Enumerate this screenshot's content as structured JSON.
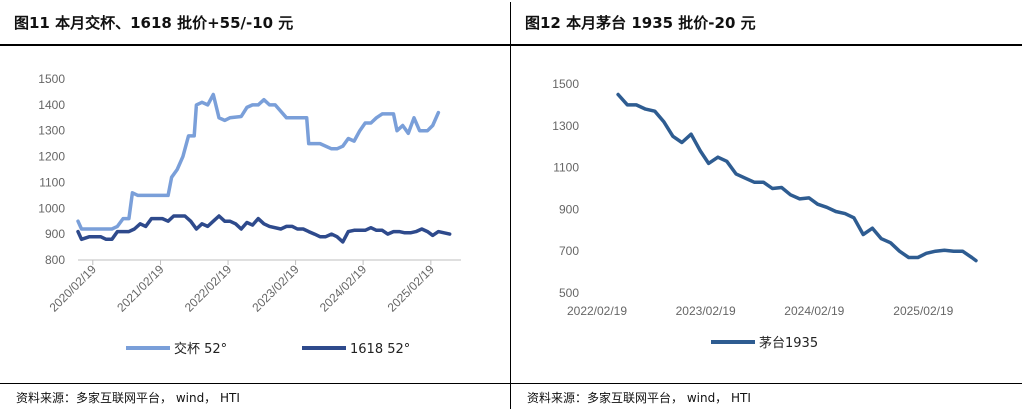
{
  "left": {
    "title": "图11 本月交杯、1618 批价+55/-10 元",
    "source": "资料来源：多家互联网平台， wind， HTI"
  },
  "right": {
    "title": "图12 本月茅台 1935 批价-20 元",
    "source": "资料来源：多家互联网平台， wind， HTI"
  },
  "chart_data": [
    {
      "type": "line",
      "title": "",
      "ylim": [
        800,
        1500
      ],
      "yticks": [
        800,
        900,
        1000,
        1100,
        1200,
        1300,
        1400,
        1500
      ],
      "xlim": [
        "2019-12-01",
        "2025-08-01"
      ],
      "xticks": [
        "2020/02/19",
        "2021/02/19",
        "2022/02/19",
        "2023/02/19",
        "2024/02/19",
        "2025/02/19"
      ],
      "xtick_dates": [
        "2020-02-19",
        "2021-02-19",
        "2022-02-19",
        "2023-02-19",
        "2024-02-19",
        "2025-02-19"
      ],
      "legend_position": "bottom",
      "series": [
        {
          "name": "交杯 52°",
          "color": "#7A9FD9",
          "points": [
            [
              "2019-12-01",
              950
            ],
            [
              "2019-12-20",
              920
            ],
            [
              "2020-02-01",
              920
            ],
            [
              "2020-04-01",
              920
            ],
            [
              "2020-06-01",
              920
            ],
            [
              "2020-07-01",
              930
            ],
            [
              "2020-08-01",
              960
            ],
            [
              "2020-09-01",
              960
            ],
            [
              "2020-09-20",
              1060
            ],
            [
              "2020-10-20",
              1050
            ],
            [
              "2020-12-01",
              1050
            ],
            [
              "2021-02-01",
              1050
            ],
            [
              "2021-04-01",
              1050
            ],
            [
              "2021-04-20",
              1120
            ],
            [
              "2021-05-20",
              1150
            ],
            [
              "2021-06-20",
              1200
            ],
            [
              "2021-07-20",
              1280
            ],
            [
              "2021-08-20",
              1280
            ],
            [
              "2021-09-01",
              1400
            ],
            [
              "2021-10-01",
              1410
            ],
            [
              "2021-11-01",
              1400
            ],
            [
              "2021-12-01",
              1440
            ],
            [
              "2022-01-01",
              1350
            ],
            [
              "2022-02-01",
              1340
            ],
            [
              "2022-03-01",
              1350
            ],
            [
              "2022-05-01",
              1355
            ],
            [
              "2022-06-01",
              1390
            ],
            [
              "2022-07-01",
              1400
            ],
            [
              "2022-08-01",
              1400
            ],
            [
              "2022-09-01",
              1420
            ],
            [
              "2022-10-01",
              1400
            ],
            [
              "2022-11-01",
              1400
            ],
            [
              "2023-01-01",
              1350
            ],
            [
              "2023-03-01",
              1350
            ],
            [
              "2023-04-20",
              1350
            ],
            [
              "2023-05-01",
              1250
            ],
            [
              "2023-07-01",
              1250
            ],
            [
              "2023-09-01",
              1230
            ],
            [
              "2023-10-01",
              1230
            ],
            [
              "2023-11-01",
              1240
            ],
            [
              "2023-12-01",
              1270
            ],
            [
              "2024-01-01",
              1260
            ],
            [
              "2024-02-01",
              1300
            ],
            [
              "2024-03-01",
              1330
            ],
            [
              "2024-04-01",
              1330
            ],
            [
              "2024-05-01",
              1350
            ],
            [
              "2024-06-01",
              1365
            ],
            [
              "2024-08-01",
              1365
            ],
            [
              "2024-08-20",
              1300
            ],
            [
              "2024-09-20",
              1320
            ],
            [
              "2024-10-20",
              1290
            ],
            [
              "2024-11-20",
              1350
            ],
            [
              "2024-12-20",
              1300
            ],
            [
              "2025-02-01",
              1300
            ],
            [
              "2025-03-01",
              1320
            ],
            [
              "2025-04-01",
              1370
            ]
          ]
        },
        {
          "name": "1618 52°",
          "color": "#2E4A8C",
          "points": [
            [
              "2019-12-01",
              910
            ],
            [
              "2019-12-20",
              880
            ],
            [
              "2020-02-01",
              890
            ],
            [
              "2020-04-01",
              890
            ],
            [
              "2020-05-01",
              880
            ],
            [
              "2020-06-01",
              880
            ],
            [
              "2020-07-01",
              910
            ],
            [
              "2020-09-01",
              910
            ],
            [
              "2020-10-01",
              920
            ],
            [
              "2020-11-01",
              940
            ],
            [
              "2020-12-01",
              930
            ],
            [
              "2021-01-01",
              960
            ],
            [
              "2021-03-01",
              960
            ],
            [
              "2021-04-01",
              950
            ],
            [
              "2021-05-01",
              970
            ],
            [
              "2021-07-01",
              970
            ],
            [
              "2021-08-01",
              950
            ],
            [
              "2021-09-01",
              920
            ],
            [
              "2021-10-01",
              940
            ],
            [
              "2021-11-01",
              930
            ],
            [
              "2021-12-01",
              950
            ],
            [
              "2022-01-01",
              970
            ],
            [
              "2022-02-01",
              950
            ],
            [
              "2022-03-01",
              950
            ],
            [
              "2022-04-01",
              940
            ],
            [
              "2022-05-01",
              920
            ],
            [
              "2022-06-01",
              945
            ],
            [
              "2022-07-01",
              935
            ],
            [
              "2022-08-01",
              960
            ],
            [
              "2022-09-01",
              940
            ],
            [
              "2022-10-01",
              930
            ],
            [
              "2022-12-01",
              920
            ],
            [
              "2023-01-01",
              930
            ],
            [
              "2023-02-01",
              930
            ],
            [
              "2023-03-01",
              920
            ],
            [
              "2023-04-01",
              920
            ],
            [
              "2023-05-01",
              910
            ],
            [
              "2023-06-01",
              900
            ],
            [
              "2023-07-01",
              890
            ],
            [
              "2023-08-01",
              890
            ],
            [
              "2023-09-01",
              900
            ],
            [
              "2023-10-01",
              890
            ],
            [
              "2023-11-01",
              870
            ],
            [
              "2023-12-01",
              910
            ],
            [
              "2024-01-01",
              915
            ],
            [
              "2024-03-01",
              915
            ],
            [
              "2024-04-01",
              925
            ],
            [
              "2024-05-01",
              915
            ],
            [
              "2024-06-01",
              915
            ],
            [
              "2024-07-01",
              900
            ],
            [
              "2024-08-01",
              910
            ],
            [
              "2024-09-01",
              910
            ],
            [
              "2024-10-01",
              905
            ],
            [
              "2024-11-01",
              905
            ],
            [
              "2024-12-01",
              910
            ],
            [
              "2025-01-01",
              920
            ],
            [
              "2025-02-01",
              910
            ],
            [
              "2025-03-01",
              895
            ],
            [
              "2025-04-01",
              910
            ],
            [
              "2025-05-01",
              905
            ],
            [
              "2025-06-01",
              900
            ]
          ]
        }
      ]
    },
    {
      "type": "line",
      "title": "",
      "ylim": [
        500,
        1500
      ],
      "yticks": [
        500,
        700,
        900,
        1100,
        1300,
        1500
      ],
      "xlim": [
        "2022-02-19",
        "2025-08-15"
      ],
      "xticks": [
        "2022/02/19",
        "2023/02/19",
        "2024/02/19",
        "2025/02/19"
      ],
      "xtick_dates": [
        "2022-02-19",
        "2023-02-19",
        "2024-02-19",
        "2025-02-19"
      ],
      "legend_position": "bottom",
      "series": [
        {
          "name": "茅台1935",
          "color": "#2E5C91",
          "points": [
            [
              "2022-05-01",
              1450
            ],
            [
              "2022-06-01",
              1400
            ],
            [
              "2022-07-01",
              1400
            ],
            [
              "2022-08-01",
              1380
            ],
            [
              "2022-09-01",
              1370
            ],
            [
              "2022-10-01",
              1320
            ],
            [
              "2022-11-01",
              1250
            ],
            [
              "2022-12-01",
              1220
            ],
            [
              "2023-01-01",
              1260
            ],
            [
              "2023-02-01",
              1180
            ],
            [
              "2023-03-01",
              1120
            ],
            [
              "2023-04-01",
              1150
            ],
            [
              "2023-05-01",
              1130
            ],
            [
              "2023-06-01",
              1070
            ],
            [
              "2023-07-01",
              1050
            ],
            [
              "2023-08-01",
              1030
            ],
            [
              "2023-09-01",
              1030
            ],
            [
              "2023-10-01",
              1000
            ],
            [
              "2023-11-01",
              1005
            ],
            [
              "2023-12-01",
              970
            ],
            [
              "2024-01-01",
              950
            ],
            [
              "2024-02-01",
              955
            ],
            [
              "2024-03-01",
              925
            ],
            [
              "2024-04-01",
              910
            ],
            [
              "2024-05-01",
              890
            ],
            [
              "2024-06-01",
              880
            ],
            [
              "2024-07-01",
              860
            ],
            [
              "2024-08-01",
              780
            ],
            [
              "2024-09-01",
              810
            ],
            [
              "2024-10-01",
              760
            ],
            [
              "2024-11-01",
              740
            ],
            [
              "2024-12-01",
              700
            ],
            [
              "2025-01-01",
              670
            ],
            [
              "2025-02-01",
              670
            ],
            [
              "2025-03-01",
              690
            ],
            [
              "2025-04-01",
              700
            ],
            [
              "2025-05-01",
              705
            ],
            [
              "2025-06-01",
              700
            ],
            [
              "2025-07-01",
              700
            ],
            [
              "2025-08-01",
              670
            ],
            [
              "2025-08-15",
              655
            ]
          ]
        }
      ]
    }
  ]
}
